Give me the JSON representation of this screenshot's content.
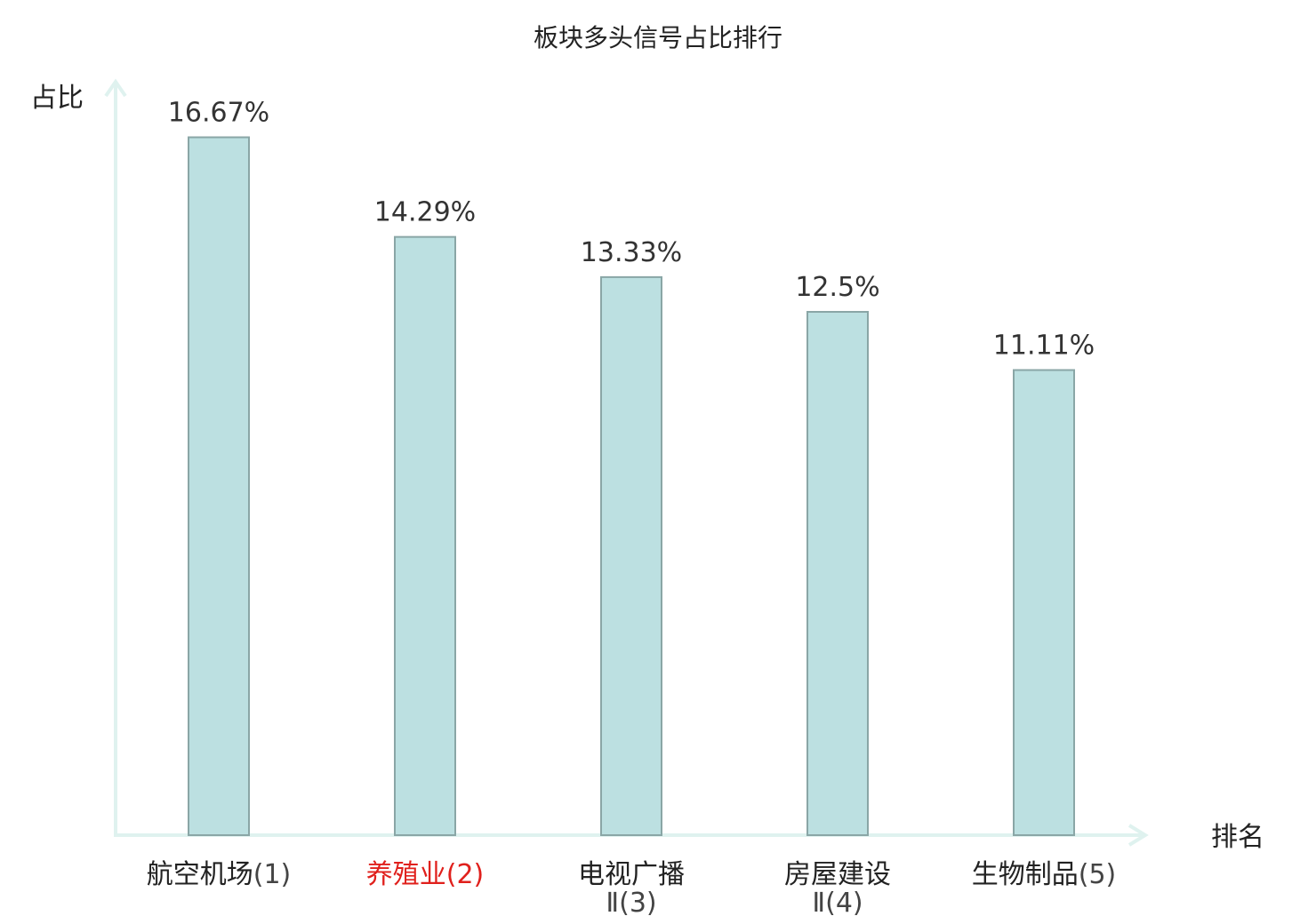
{
  "chart_data": {
    "type": "bar",
    "title": "板块多头信号占比排行",
    "ylabel": "占比",
    "xlabel": "排名",
    "ylim": [
      0,
      18
    ],
    "grid": false,
    "categories": [
      {
        "name": "航空机场",
        "suffix": "(1)",
        "line2": "",
        "highlight": false
      },
      {
        "name": "养殖业",
        "suffix": "(2)",
        "line2": "",
        "highlight": true
      },
      {
        "name": "电视广播",
        "suffix": "",
        "line2": "Ⅱ(3)",
        "highlight": false
      },
      {
        "name": "房屋建设",
        "suffix": "",
        "line2": "Ⅱ(4)",
        "highlight": false
      },
      {
        "name": "生物制品",
        "suffix": "(5)",
        "line2": "",
        "highlight": false
      }
    ],
    "values": [
      16.67,
      14.29,
      13.33,
      12.5,
      11.11
    ],
    "value_labels": [
      "16.67%",
      "14.29%",
      "13.33%",
      "12.5%",
      "11.11%"
    ]
  },
  "colors": {
    "bar_fill": "#bce0e1",
    "bar_stroke": "#8aa6a6",
    "axis": "#dff2ef",
    "text": "#222222",
    "value_text": "#333333",
    "highlight": "#e0201c",
    "suffix": "#444444"
  }
}
